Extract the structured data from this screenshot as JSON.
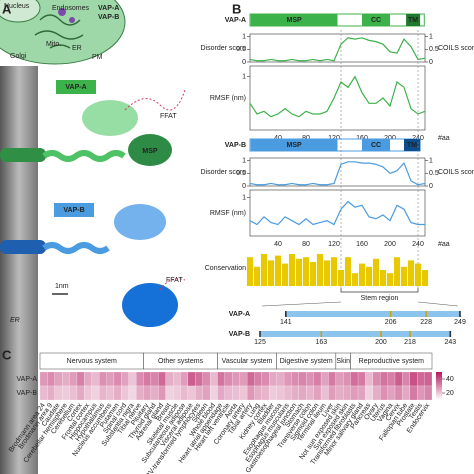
{
  "panel_a": {
    "label": "A",
    "cell_labels": [
      "Nucleus",
      "Endosomes",
      "Mito.",
      "ER",
      "Golgi",
      "PM"
    ],
    "legend": [
      "VAP-A",
      "VAP-B"
    ],
    "vap_a": "VAP-A",
    "ffat_a": "FFAT",
    "msp": "MSP",
    "vap_b": "VAP-B",
    "scale": "1nm",
    "ffat_b": "FFAT",
    "er": "ER"
  },
  "panel_b": {
    "label": "B",
    "x": [
      0,
      10,
      20,
      30,
      40,
      50,
      60,
      70,
      80,
      90,
      100,
      110,
      120,
      130,
      140,
      150,
      160,
      170,
      180,
      190,
      200,
      210,
      220,
      230,
      240,
      250
    ],
    "xlim": [
      0,
      250
    ],
    "xticks": [
      40,
      80,
      120,
      160,
      200,
      240
    ],
    "x_unit": "#aa",
    "disorder_label": "Disorder score",
    "coils_label": "COILS score",
    "disorder_ylim": [
      0,
      1.1
    ],
    "disorder_yticks": [
      0,
      0.5,
      1
    ],
    "rmsf_label": "RMSF (nm)",
    "rmsf_ylim": [
      0,
      1.2
    ],
    "rmsf_yticks": [
      1
    ],
    "proteins": [
      {
        "name": "VAP-A",
        "color": "#3cb34a",
        "dark_color": "#1d7a2c",
        "length": 249,
        "domains": [
          {
            "label": "MSP",
            "start": 1,
            "end": 125
          },
          {
            "label": "CC",
            "start": 160,
            "end": 200
          },
          {
            "label": "TM",
            "start": 223,
            "end": 243
          }
        ],
        "disorder": [
          0.1,
          0.05,
          0.05,
          0.1,
          0.05,
          0.05,
          0.1,
          0.05,
          0.05,
          0.1,
          0.05,
          0.1,
          0.05,
          0.7,
          0.95,
          0.9,
          0.95,
          0.85,
          0.8,
          0.7,
          0.4,
          0.35,
          0.9,
          0.6,
          0.1,
          0.15
        ],
        "rmsf": [
          0.5,
          0.3,
          0.35,
          0.25,
          0.3,
          0.4,
          0.3,
          0.25,
          0.35,
          0.3,
          0.3,
          0.35,
          0.6,
          0.9,
          0.8,
          1.0,
          0.7,
          0.5,
          0.5,
          0.6,
          0.45,
          0.9,
          0.8,
          0.4,
          0.3,
          0.35
        ]
      },
      {
        "name": "VAP-B",
        "color": "#4a9be0",
        "dark_color": "#0d4d8c",
        "length": 243,
        "domains": [
          {
            "label": "MSP",
            "start": 1,
            "end": 125
          },
          {
            "label": "CC",
            "start": 160,
            "end": 200
          },
          {
            "label": "TM",
            "start": 220,
            "end": 243
          }
        ],
        "disorder": [
          0.1,
          0.05,
          0.05,
          0.1,
          0.05,
          0.05,
          0.1,
          0.05,
          0.05,
          0.1,
          0.05,
          0.05,
          0.1,
          0.85,
          0.95,
          0.95,
          0.9,
          0.9,
          0.85,
          0.75,
          0.5,
          0.6,
          0.9,
          0.2,
          0.05,
          0.1
        ],
        "rmsf": [
          0.4,
          0.3,
          0.5,
          0.35,
          0.3,
          0.5,
          0.4,
          0.3,
          0.45,
          0.3,
          0.35,
          0.4,
          0.3,
          0.7,
          0.9,
          0.75,
          0.8,
          0.5,
          0.45,
          0.55,
          0.4,
          0.8,
          0.7,
          0.35,
          0.3,
          0.3
        ]
      }
    ],
    "conservation_label": "Conservation",
    "conservation_color": "#e8c800",
    "conservation": [
      0.9,
      0.6,
      1,
      0.8,
      0.95,
      0.7,
      1,
      0.85,
      0.9,
      0.75,
      1,
      0.8,
      0.9,
      0.5,
      0.9,
      0.4,
      0.7,
      0.6,
      0.85,
      0.5,
      0.4,
      0.9,
      0.6,
      0.8,
      0.7,
      0.5
    ],
    "stem_label": "Stem region",
    "stem": [
      130,
      240
    ],
    "linear": [
      {
        "name": "VAP-A",
        "positions": [
          141,
          206,
          228,
          249
        ]
      },
      {
        "name": "VAP-B",
        "positions": [
          125,
          163,
          200,
          218,
          243
        ]
      }
    ]
  },
  "panel_c": {
    "label": "C",
    "rows": [
      "VAP-A",
      "VAP-B"
    ],
    "color_lim": [
      10,
      50
    ],
    "colorbar_ticks": [
      40,
      20
    ],
    "groups": [
      {
        "label": "Nervous system",
        "tissues": [
          "Brodmann area 24",
          "Brodmann area 9",
          "Caudate",
          "Cerebellar hemisphere",
          "Cerebellum",
          "Cortex",
          "Frontal cortex",
          "Hippocampus",
          "Hypothalamus",
          "Nucleus accumbens",
          "Putamen",
          "Spinal cord",
          "Substantia nigra",
          "Tibial nerve"
        ]
      },
      {
        "label": "Other systems",
        "tissues": [
          "Pituitary",
          "Thyroid gland",
          "Adrenal gland",
          "Breast",
          "Skeletal muscle",
          "Subcutaneous adipose",
          "Visceral adipose",
          "EBV-transformed lymphocytes",
          "Spleen",
          "Whole blood"
        ]
      },
      {
        "label": "Vascular system",
        "tissues": [
          "Heart atrial appendage",
          "Heart left ventricle",
          "Aorta",
          "Coronary artery",
          "Tibial artery",
          "Lung",
          "Kidney cortex",
          "Bladder"
        ]
      },
      {
        "label": "Digestive system",
        "tissues": [
          "Esophagus mucosa",
          "Esophagus muscularis",
          "Gastroesophageal junction",
          "Stomach",
          "Transverse colon",
          "Sigmoid colon",
          "Terminal ileum",
          "Liver"
        ]
      },
      {
        "label": "Skin",
        "tissues": [
          "Not sun exposed skin",
          "Sun exposed skin"
        ]
      },
      {
        "label": "Reproductive system",
        "tissues": [
          "Transformed fibroblasts",
          "Minor salivary gland",
          "Pancreas",
          "Ovary",
          "Uterus",
          "Vagina",
          "Cervix",
          "Fallopian tube",
          "Prostate",
          "Testis",
          "Endocervix"
        ]
      }
    ],
    "values": [
      [
        28,
        30,
        26,
        24,
        27,
        32,
        25,
        22,
        29,
        27,
        30,
        26,
        20,
        30,
        33,
        31,
        36,
        24,
        22,
        27,
        38,
        35,
        30,
        22,
        34,
        30,
        28,
        27,
        36,
        32,
        30,
        25,
        24,
        28,
        30,
        31,
        29,
        32,
        26,
        33,
        27,
        29,
        35,
        33,
        22,
        30,
        34,
        32,
        38,
        31,
        40,
        36,
        37
      ],
      [
        22,
        24,
        20,
        19,
        21,
        25,
        20,
        18,
        23,
        21,
        24,
        20,
        17,
        24,
        26,
        24,
        28,
        18,
        19,
        22,
        20,
        24,
        26,
        18,
        25,
        22,
        21,
        20,
        28,
        24,
        23,
        19,
        20,
        22,
        24,
        25,
        23,
        26,
        21,
        27,
        24,
        25,
        27,
        26,
        18,
        24,
        29,
        26,
        30,
        25,
        33,
        28,
        31
      ]
    ]
  }
}
